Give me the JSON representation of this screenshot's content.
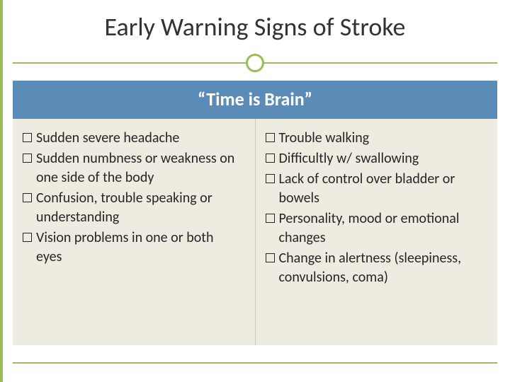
{
  "colors": {
    "accent": "#9bbb59",
    "bar_bg": "#5b8cb8",
    "content_bg": "#eeece1",
    "text": "#262626"
  },
  "title": "Early Warning Signs of Stroke",
  "subtitle": "“Time is Brain”",
  "left_column": [
    "Sudden severe headache",
    "Sudden numbness or weakness on one side of the body",
    "Confusion, trouble speaking or understanding",
    "Vision problems in one or both eyes"
  ],
  "right_column": [
    "Trouble walking",
    "Difficultly w/ swallowing",
    "Lack of control over bladder or bowels",
    "Personality, mood or emotional changes",
    "Change in alertness (sleepiness, convulsions, coma)"
  ]
}
